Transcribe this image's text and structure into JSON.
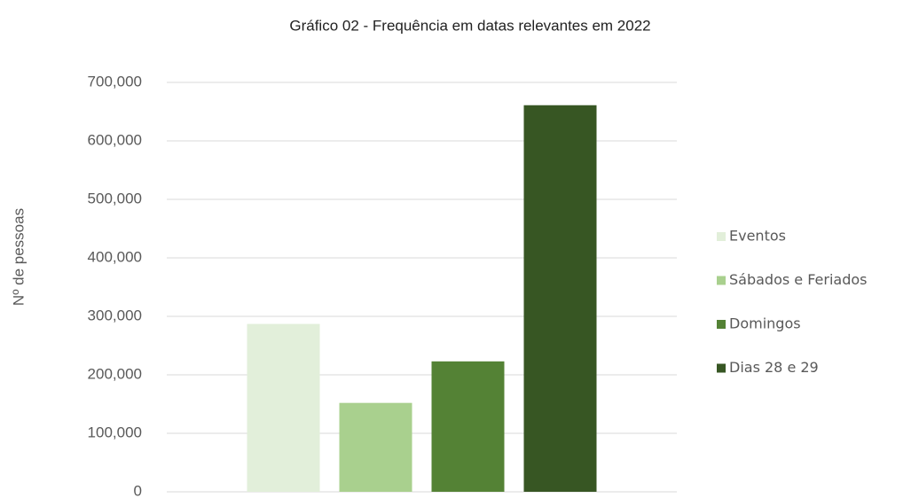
{
  "chart_data": {
    "type": "bar",
    "title": "Gráfico 02 - Frequência em datas relevantes em 2022",
    "y_label": "Nº de pessoas",
    "categories": [
      null
    ],
    "series": [
      {
        "name": "Eventos",
        "color": "#e2efda",
        "values": [
          287000
        ]
      },
      {
        "name": "Sábados e Feriados",
        "color": "#a9d08e",
        "values": [
          152000
        ]
      },
      {
        "name": "Domingos",
        "color": "#548235",
        "values": [
          223000
        ]
      },
      {
        "name": "Dias 28 e 29",
        "color": "#375623",
        "values": [
          661000
        ]
      }
    ],
    "ylim": [
      0,
      700000
    ],
    "yticks": [
      0,
      {
        "value": 100000,
        "label": "100,000"
      },
      {
        "value": 200000,
        "label": "200,000"
      },
      {
        "value": 300000,
        "label": "300,000"
      },
      {
        "value": 400000,
        "label": "400,000"
      },
      {
        "value": 500000,
        "label": "500,000"
      },
      {
        "value": 600000,
        "label": "600,000"
      },
      {
        "value": 700000,
        "label": "700,000"
      }
    ],
    "grid": true,
    "legend": "right"
  }
}
